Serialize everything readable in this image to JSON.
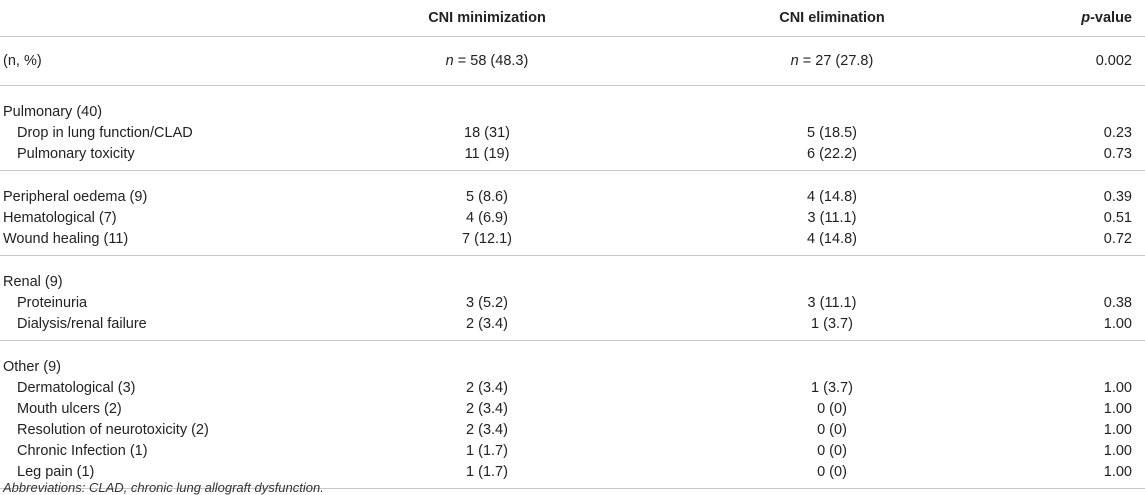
{
  "header": {
    "col1": "",
    "col2": "CNI minimization",
    "col3": "CNI elimination",
    "col4_italic": "p",
    "col4_rest": "-value"
  },
  "n_row": {
    "label": "(n, %)",
    "minimization_prefix": "n",
    "minimization_rest": " = 58 (48.3)",
    "elimination_prefix": "n",
    "elimination_rest": " = 27 (27.8)",
    "p": "0.002"
  },
  "groups": [
    {
      "heading": "Pulmonary (40)",
      "rows": [
        {
          "label": "Drop in lung function/CLAD",
          "min": "18 (31)",
          "elim": "5 (18.5)",
          "p": "0.23"
        },
        {
          "label": "Pulmonary toxicity",
          "min": "11 (19)",
          "elim": "6 (22.2)",
          "p": "0.73"
        }
      ]
    },
    {
      "heading": "",
      "rows": [
        {
          "label": "Peripheral oedema (9)",
          "min": "5 (8.6)",
          "elim": "4 (14.8)",
          "p": "0.39"
        },
        {
          "label": "Hematological (7)",
          "min": "4 (6.9)",
          "elim": "3 (11.1)",
          "p": "0.51"
        },
        {
          "label": "Wound healing (11)",
          "min": "7 (12.1)",
          "elim": "4 (14.8)",
          "p": "0.72"
        }
      ]
    },
    {
      "heading": "Renal (9)",
      "rows": [
        {
          "label": "Proteinuria",
          "min": "3 (5.2)",
          "elim": "3 (11.1)",
          "p": "0.38"
        },
        {
          "label": "Dialysis/renal failure",
          "min": "2 (3.4)",
          "elim": "1 (3.7)",
          "p": "1.00"
        }
      ]
    },
    {
      "heading": "Other (9)",
      "rows": [
        {
          "label": "Dermatological (3)",
          "min": "2 (3.4)",
          "elim": "1 (3.7)",
          "p": "1.00"
        },
        {
          "label": "Mouth ulcers (2)",
          "min": "2 (3.4)",
          "elim": "0 (0)",
          "p": "1.00"
        },
        {
          "label": "Resolution of neurotoxicity (2)",
          "min": "2 (3.4)",
          "elim": "0 (0)",
          "p": "1.00"
        },
        {
          "label": "Chronic Infection (1)",
          "min": "1 (1.7)",
          "elim": "0 (0)",
          "p": "1.00"
        },
        {
          "label": "Leg pain (1)",
          "min": "1 (1.7)",
          "elim": "0 (0)",
          "p": "1.00"
        }
      ]
    }
  ],
  "footnote": "Abbreviations: CLAD, chronic lung allograft dysfunction."
}
